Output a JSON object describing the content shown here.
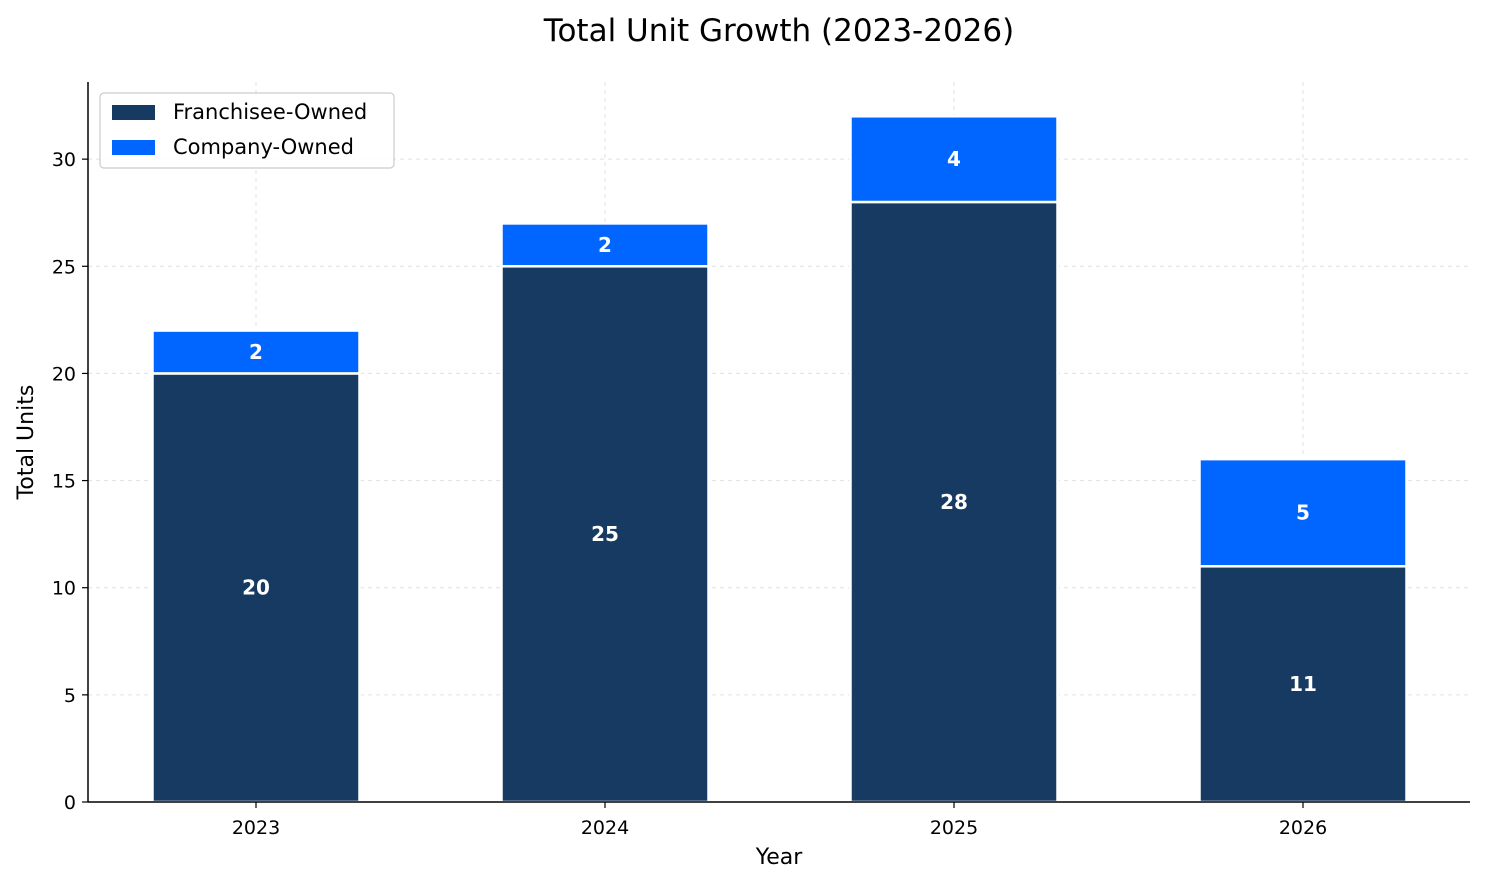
{
  "chart_data": {
    "type": "bar",
    "stacked": true,
    "title": "Total Unit Growth (2023-2026)",
    "xlabel": "Year",
    "ylabel": "Total Units",
    "categories": [
      "2023",
      "2024",
      "2025",
      "2026"
    ],
    "series": [
      {
        "name": "Franchisee-Owned",
        "values": [
          20,
          25,
          28,
          11
        ],
        "color": "#163A62"
      },
      {
        "name": "Company-Owned",
        "values": [
          2,
          2,
          4,
          5
        ],
        "color": "#0066FF"
      }
    ],
    "ylim": [
      0,
      33.6
    ],
    "yticks": [
      0,
      5,
      10,
      15,
      20,
      25,
      30
    ],
    "grid": true,
    "legend_position": "top-left"
  }
}
